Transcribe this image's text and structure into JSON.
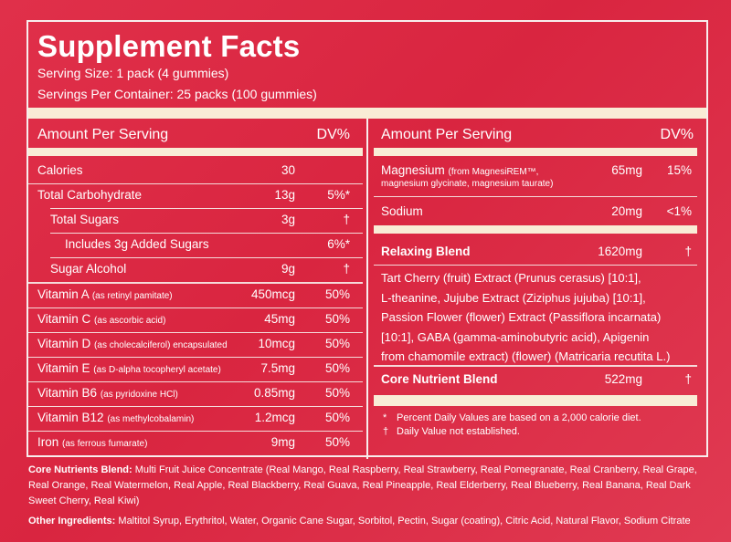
{
  "title": "Supplement Facts",
  "serving_size": "Serving Size: 1 pack (4 gummies)",
  "servings_per_container": "Servings Per Container: 25 packs (100 gummies)",
  "left": {
    "header_amount": "Amount Per Serving",
    "header_dv": "DV%",
    "rows": [
      {
        "name": "Calories",
        "sub": "",
        "amount": "30",
        "dv": ""
      },
      {
        "name": "Total Carbohydrate",
        "sub": "",
        "amount": "13g",
        "dv": "5%*"
      },
      {
        "name": "Total Sugars",
        "sub": "",
        "amount": "3g",
        "dv": "†"
      },
      {
        "name": "Includes 3g Added Sugars",
        "sub": "",
        "amount": "",
        "dv": "6%*"
      },
      {
        "name": "Sugar Alcohol",
        "sub": "",
        "amount": "9g",
        "dv": "†"
      },
      {
        "name": "Vitamin A",
        "sub": "(as retinyl pamitate)",
        "amount": "450mcg",
        "dv": "50%"
      },
      {
        "name": "Vitamin C",
        "sub": "(as ascorbic acid)",
        "amount": "45mg",
        "dv": "50%"
      },
      {
        "name": "Vitamin D",
        "sub": "(as cholecalciferol) encapsulated",
        "amount": "10mcg",
        "dv": "50%"
      },
      {
        "name": "Vitamin E",
        "sub": "(as D-alpha tocopheryl acetate)",
        "amount": "7.5mg",
        "dv": "50%"
      },
      {
        "name": "Vitamin B6",
        "sub": "(as pyridoxine HCl)",
        "amount": "0.85mg",
        "dv": "50%"
      },
      {
        "name": "Vitamin B12",
        "sub": "(as methylcobalamin)",
        "amount": "1.2mcg",
        "dv": "50%"
      },
      {
        "name": "Iron",
        "sub": "(as ferrous fumarate)",
        "amount": "9mg",
        "dv": "50%"
      }
    ]
  },
  "right": {
    "header_amount": "Amount Per Serving",
    "header_dv": "DV%",
    "magnesium": {
      "name": "Magnesium",
      "sub1": "(from MagnesiREM™,",
      "sub2": "magnesium glycinate, magnesium taurate)",
      "amount": "65mg",
      "dv": "15%"
    },
    "sodium": {
      "name": "Sodium",
      "amount": "20mg",
      "dv": "<1%"
    },
    "relaxing_blend": {
      "name": "Relaxing Blend",
      "amount": "1620mg",
      "dv": "†",
      "lines": [
        "Tart Cherry (fruit) Extract (Prunus cerasus) [10:1],",
        "L-theanine, Jujube Extract (Ziziphus jujuba) [10:1],",
        "Passion Flower (flower) Extract (Passiflora incarnata)",
        "[10:1], GABA (gamma-aminobutyric acid), Apigenin",
        "from chamomile extract) (flower) (Matricaria recutita L.)"
      ]
    },
    "core_blend": {
      "name": "Core Nutrient Blend",
      "amount": "522mg",
      "dv": "†"
    },
    "footnote1_mark": "*",
    "footnote1": "Percent Daily Values are based on a 2,000 calorie diet.",
    "footnote2_mark": "†",
    "footnote2": "Daily Value not established."
  },
  "core_nutrients": {
    "label": "Core Nutrients Blend:",
    "text": "Multi Fruit Juice Concentrate (Real Mango, Real Raspberry, Real Strawberry, Real Pomegranate, Real Cranberry, Real Grape, Real Orange, Real Watermelon, Real Apple, Real Blackberry, Real Guava, Real Pineapple, Real Elderberry, Real Blueberry, Real Banana, Real Dark Sweet Cherry, Real Kiwi)"
  },
  "other_ingredients": {
    "label": "Other Ingredients:",
    "text": "Maltitol Syrup, Erythritol, Water, Organic Cane Sugar, Sorbitol, Pectin, Sugar (coating), Citric Acid, Natural Flavor, Sodium Citrate"
  },
  "colors": {
    "background": "#d92540",
    "bar": "#f9ecd6",
    "text": "#ffffff"
  }
}
